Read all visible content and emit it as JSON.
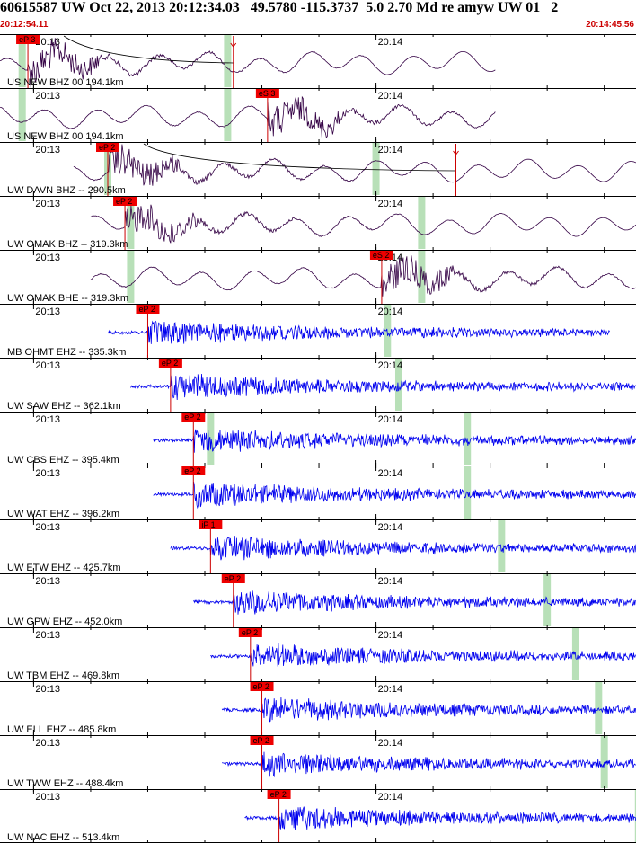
{
  "header": {
    "title": "60615587 UW Oct 22, 2013 20:12:34.03   49.5780 -115.3737  5.0 2.70 Md re amyw UW 01   2",
    "start_time": "20:12:54.11",
    "end_time": "20:14:45.56"
  },
  "colors": {
    "long_period_trace": "#330044",
    "short_period_trace": "#0000ee",
    "pick_box": "#ee0000",
    "pick_line": "#cc0000",
    "coda_band": "#b8e0b8",
    "timing_tick": "#000000",
    "theoretical_curve": "#000000"
  },
  "chart_data": {
    "type": "seismogram",
    "time_window": {
      "start": "20:12:54.11",
      "end": "20:14:45.56"
    },
    "minute_labels": [
      "20:13",
      "20:14"
    ],
    "traces": [
      {
        "label": "US NEW BHZ 00 194.1km",
        "station": "NEW",
        "network": "US",
        "channel": "BHZ",
        "location": "00",
        "distance_km": 194.1,
        "color": "long_period",
        "data_start": "20:12:54",
        "data_end": "20:14:21",
        "picks": [
          {
            "label": "eP 3",
            "time": "20:12:59"
          },
          {
            "label": "",
            "time": "20:13:35"
          }
        ],
        "coda_bands": [
          "20:12:58",
          "20:13:34"
        ],
        "theoretical_curve": true
      },
      {
        "label": "US NEW BHZ 00 194.1km",
        "station": "NEW",
        "network": "US",
        "channel": "BHZ",
        "location": "00",
        "distance_km": 194.1,
        "color": "long_period",
        "data_start": "20:12:54",
        "data_end": "20:14:21",
        "picks": [
          {
            "label": "eS 3",
            "time": "20:13:41"
          }
        ],
        "coda_bands": [
          "20:12:58",
          "20:13:34"
        ]
      },
      {
        "label": "UW DAVN BHZ -- 290.5km",
        "station": "DAVN",
        "network": "UW",
        "channel": "BHZ",
        "location": "--",
        "distance_km": 290.5,
        "color": "long_period",
        "data_start": "20:13:07",
        "data_end": "20:14:46",
        "picks": [
          {
            "label": "eP 2",
            "time": "20:13:13"
          },
          {
            "label": "",
            "time": "20:14:14"
          }
        ],
        "coda_bands": [
          "20:13:13",
          "20:14:00"
        ],
        "theoretical_curve": true
      },
      {
        "label": "UW OMAK BHZ -- 319.3km",
        "station": "OMAK",
        "network": "UW",
        "channel": "BHZ",
        "location": "--",
        "distance_km": 319.3,
        "color": "long_period",
        "data_start": "20:13:10",
        "data_end": "20:14:54",
        "picks": [
          {
            "label": "eP 2",
            "time": "20:13:16"
          }
        ],
        "coda_bands": [
          "20:13:17",
          "20:14:08"
        ]
      },
      {
        "label": "UW OMAK BHE -- 319.3km",
        "station": "OMAK",
        "network": "UW",
        "channel": "BHE",
        "location": "--",
        "distance_km": 319.3,
        "color": "long_period",
        "data_start": "20:13:10",
        "data_end": "20:14:54",
        "picks": [
          {
            "label": "eS 2",
            "time": "20:14:01"
          }
        ],
        "coda_bands": [
          "20:13:17",
          "20:14:08"
        ]
      },
      {
        "label": "MB OHMT EHZ -- 335.3km",
        "station": "OHMT",
        "network": "MB",
        "channel": "EHZ",
        "location": "--",
        "distance_km": 335.3,
        "color": "short_period",
        "data_start": "20:13:13",
        "data_end": "20:14:41",
        "picks": [
          {
            "label": "eP 2",
            "time": "20:13:20"
          }
        ],
        "coda_bands": [
          "20:14:02"
        ]
      },
      {
        "label": "UW SAW EHZ -- 362.1km",
        "station": "SAW",
        "network": "UW",
        "channel": "EHZ",
        "location": "--",
        "distance_km": 362.1,
        "color": "short_period",
        "data_start": "20:13:17",
        "data_end": "20:14:59",
        "picks": [
          {
            "label": "eP 2",
            "time": "20:13:24"
          }
        ],
        "coda_bands": [
          "20:14:04"
        ]
      },
      {
        "label": "UW CBS EHZ -- 395.4km",
        "station": "CBS",
        "network": "UW",
        "channel": "EHZ",
        "location": "--",
        "distance_km": 395.4,
        "color": "short_period",
        "data_start": "20:13:21",
        "data_end": "20:15:09",
        "picks": [
          {
            "label": "eP 2",
            "time": "20:13:28"
          }
        ],
        "coda_bands": [
          "20:13:31",
          "20:14:16"
        ]
      },
      {
        "label": "UW WAT EHZ -- 396.2km",
        "station": "WAT",
        "network": "UW",
        "channel": "EHZ",
        "location": "--",
        "distance_km": 396.2,
        "color": "short_period",
        "data_start": "20:13:21",
        "data_end": "20:15:09",
        "picks": [
          {
            "label": "eP 2",
            "time": "20:13:28"
          }
        ],
        "coda_bands": [
          "20:14:16"
        ]
      },
      {
        "label": "UW ETW EHZ -- 425.7km",
        "station": "ETW",
        "network": "UW",
        "channel": "EHZ",
        "location": "--",
        "distance_km": 425.7,
        "color": "short_period",
        "data_start": "20:13:24",
        "data_end": "20:15:14",
        "picks": [
          {
            "label": "iP 1",
            "time": "20:13:31"
          }
        ],
        "coda_bands": [
          "20:14:22"
        ]
      },
      {
        "label": "UW GPW EHZ -- 452.0km",
        "station": "GPW",
        "network": "UW",
        "channel": "EHZ",
        "location": "--",
        "distance_km": 452.0,
        "color": "short_period",
        "data_start": "20:13:28",
        "data_end": "20:15:20",
        "picks": [
          {
            "label": "eP 2",
            "time": "20:13:35"
          }
        ],
        "coda_bands": [
          "20:14:30"
        ]
      },
      {
        "label": "UW TBM EHZ -- 469.8km",
        "station": "TBM",
        "network": "UW",
        "channel": "EHZ",
        "location": "--",
        "distance_km": 469.8,
        "color": "short_period",
        "data_start": "20:13:31",
        "data_end": "20:15:23",
        "picks": [
          {
            "label": "eP 2",
            "time": "20:13:38"
          }
        ],
        "coda_bands": [
          "20:14:35"
        ]
      },
      {
        "label": "UW ELL EHZ -- 485.8km",
        "station": "ELL",
        "network": "UW",
        "channel": "EHZ",
        "location": "--",
        "distance_km": 485.8,
        "color": "short_period",
        "data_start": "20:13:33",
        "data_end": "20:15:26",
        "picks": [
          {
            "label": "eP 2",
            "time": "20:13:40"
          }
        ],
        "coda_bands": [
          "20:14:39"
        ]
      },
      {
        "label": "UW TWW EHZ -- 488.4km",
        "station": "TWW",
        "network": "UW",
        "channel": "EHZ",
        "location": "--",
        "distance_km": 488.4,
        "color": "short_period",
        "data_start": "20:13:33",
        "data_end": "20:15:26",
        "picks": [
          {
            "label": "eP 2",
            "time": "20:13:40"
          }
        ],
        "coda_bands": [
          "20:14:40"
        ]
      },
      {
        "label": "UW NAC EHZ -- 513.4km",
        "station": "NAC",
        "network": "UW",
        "channel": "EHZ",
        "location": "--",
        "distance_km": 513.4,
        "color": "short_period",
        "data_start": "20:13:37",
        "data_end": "20:15:30",
        "picks": [
          {
            "label": "eP 2",
            "time": "20:13:43"
          }
        ],
        "coda_bands": [
          "20:14:46"
        ]
      }
    ]
  }
}
